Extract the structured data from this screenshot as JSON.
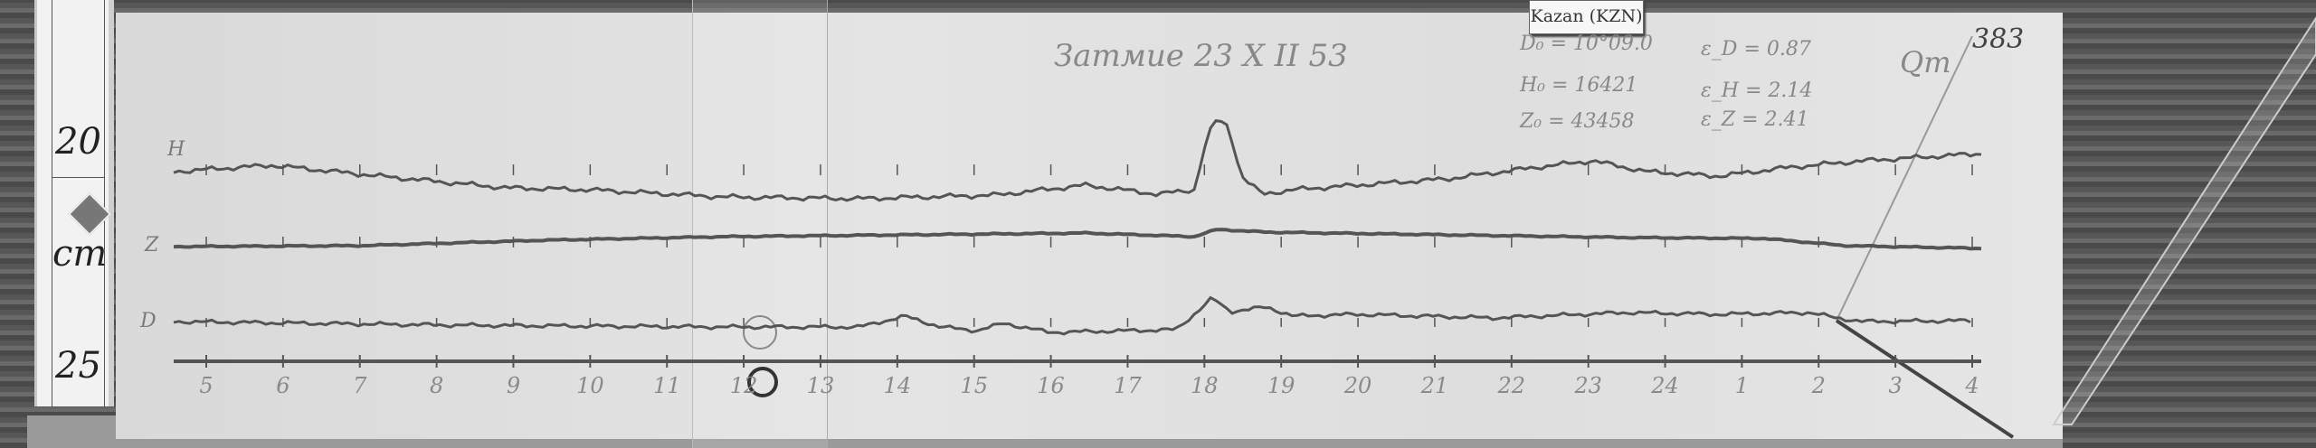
{
  "ruler": {
    "top_number": "20",
    "unit": "cm",
    "bottom_number": "25"
  },
  "station_label": "Kazan (KZN)",
  "handwritten": {
    "title": "Затмие 23 X II 53",
    "sheet_number": "383",
    "corner_note": "Qm",
    "constants": [
      {
        "left": "D₀ = 10°09.0",
        "right": "ε_D = 0.87"
      },
      {
        "left": "H₀ = 16421",
        "right": "ε_H = 2.14"
      },
      {
        "left": "Z₀ = 43458",
        "right": "ε_Z = 2.41"
      }
    ]
  },
  "trace_labels": {
    "h": "H",
    "z": "Z",
    "d": "D"
  },
  "hour_labels": [
    "5",
    "6",
    "7",
    "8",
    "9",
    "10",
    "11",
    "12",
    "13",
    "14",
    "15",
    "16",
    "17",
    "18",
    "19",
    "20",
    "21",
    "22",
    "23",
    "24",
    "1",
    "2",
    "3",
    "4"
  ],
  "colors": {
    "trace": "#555555",
    "paper": "#e0e0e0",
    "background": "#5e5e5e"
  }
}
